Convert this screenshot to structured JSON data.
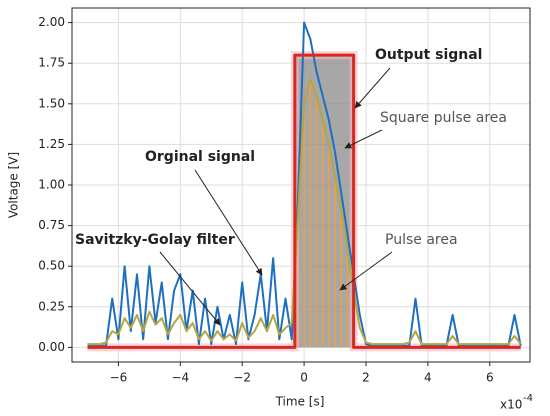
{
  "chart_data": {
    "type": "line",
    "xlabel": "Time [s]",
    "ylabel": "Voltage [V]",
    "x_scale_label": "x10",
    "x_scale_exponent": "-4",
    "xlim": [
      -7.5,
      7.3
    ],
    "ylim": [
      -0.09,
      2.09
    ],
    "xticks": [
      {
        "value": -6,
        "label": "−6"
      },
      {
        "value": -4,
        "label": "−4"
      },
      {
        "value": -2,
        "label": "−2"
      },
      0,
      2,
      4,
      6
    ],
    "yticks": [
      {
        "value": 0,
        "label": "0.00"
      },
      {
        "value": 0.25,
        "label": "0.25"
      },
      {
        "value": 0.5,
        "label": "0.50"
      },
      {
        "value": 0.75,
        "label": "0.75"
      },
      {
        "value": 1,
        "label": "1.00"
      },
      {
        "value": 1.25,
        "label": "1.25"
      },
      {
        "value": 1.5,
        "label": "1.50"
      },
      {
        "value": 1.75,
        "label": "1.75"
      },
      {
        "value": 2,
        "label": "2.00"
      }
    ],
    "grid": true,
    "x": [
      -7,
      -6.8,
      -6.6,
      -6.4,
      -6.2,
      -6,
      -5.8,
      -5.6,
      -5.4,
      -5.2,
      -5,
      -4.8,
      -4.6,
      -4.4,
      -4.2,
      -4,
      -3.8,
      -3.6,
      -3.4,
      -3.2,
      -3,
      -2.8,
      -2.6,
      -2.4,
      -2.2,
      -2,
      -1.8,
      -1.6,
      -1.4,
      -1.2,
      -1,
      -0.8,
      -0.6,
      -0.4,
      -0.2,
      0,
      0.2,
      0.4,
      0.6,
      0.8,
      1,
      1.2,
      1.4,
      1.6,
      1.8,
      2,
      2.2,
      2.4,
      2.6,
      2.8,
      3,
      3.2,
      3.4,
      3.6,
      3.8,
      4,
      4.2,
      4.4,
      4.6,
      4.8,
      5,
      5.2,
      5.4,
      5.6,
      5.8,
      6,
      6.2,
      6.4,
      6.6,
      6.8,
      7
    ],
    "series": [
      {
        "color": "#1f6fc0",
        "values": [
          0.01,
          0.01,
          0.01,
          0.01,
          0.3,
          0.05,
          0.5,
          0.1,
          0.45,
          0.05,
          0.5,
          0.15,
          0.4,
          0.05,
          0.35,
          0.45,
          0.1,
          0.35,
          0.02,
          0.3,
          0.02,
          0.25,
          0.05,
          0.2,
          0.02,
          0.4,
          0.05,
          0.2,
          0.45,
          0.1,
          0.55,
          0.05,
          0.3,
          0.05,
          0.9,
          2.0,
          1.9,
          1.7,
          1.55,
          1.4,
          1.2,
          0.95,
          0.7,
          0.45,
          0.2,
          0.02,
          0.01,
          0.01,
          0.01,
          0.01,
          0.01,
          0.01,
          0.01,
          0.3,
          0.01,
          0.01,
          0.01,
          0.01,
          0.01,
          0.2,
          0.01,
          0.01,
          0.01,
          0.01,
          0.01,
          0.01,
          0.01,
          0.01,
          0.01,
          0.2,
          0.01
        ]
      },
      {
        "color": "#b5a642",
        "values": [
          0.02,
          0.02,
          0.02,
          0.03,
          0.1,
          0.08,
          0.18,
          0.12,
          0.2,
          0.1,
          0.22,
          0.14,
          0.18,
          0.08,
          0.15,
          0.2,
          0.1,
          0.15,
          0.05,
          0.1,
          0.04,
          0.1,
          0.05,
          0.08,
          0.04,
          0.15,
          0.06,
          0.1,
          0.18,
          0.1,
          0.2,
          0.08,
          0.12,
          0.15,
          0.8,
          1.5,
          1.65,
          1.55,
          1.4,
          1.25,
          1.05,
          0.85,
          0.6,
          0.35,
          0.12,
          0.03,
          0.02,
          0.02,
          0.02,
          0.02,
          0.02,
          0.02,
          0.03,
          0.1,
          0.02,
          0.02,
          0.02,
          0.02,
          0.02,
          0.07,
          0.02,
          0.02,
          0.02,
          0.02,
          0.02,
          0.02,
          0.02,
          0.02,
          0.02,
          0.07,
          0.02
        ]
      },
      {
        "color": "#d62a1e",
        "x": [
          -7,
          -0.3,
          -0.3,
          1.6,
          1.6,
          7
        ],
        "values": [
          0,
          0,
          1.8,
          1.8,
          0,
          0
        ]
      }
    ],
    "annotations": [
      "Output signal",
      "Square pulse area",
      "Orginal signal",
      "Savitzky-Golay filter",
      "Pulse area"
    ]
  }
}
